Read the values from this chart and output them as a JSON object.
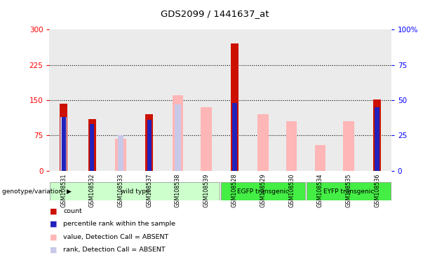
{
  "title": "GDS2099 / 1441637_at",
  "samples": [
    "GSM108531",
    "GSM108532",
    "GSM108533",
    "GSM108537",
    "GSM108538",
    "GSM108539",
    "GSM108528",
    "GSM108529",
    "GSM108530",
    "GSM108534",
    "GSM108535",
    "GSM108536"
  ],
  "count": [
    143,
    110,
    0,
    120,
    0,
    0,
    270,
    0,
    0,
    0,
    0,
    152
  ],
  "percentile_rank_pct": [
    38,
    33,
    0,
    36,
    0,
    0,
    48,
    0,
    0,
    0,
    0,
    45
  ],
  "value_absent": [
    0,
    0,
    68,
    0,
    160,
    135,
    0,
    120,
    105,
    55,
    105,
    0
  ],
  "rank_absent_pct": [
    38,
    0,
    25,
    0,
    47,
    0,
    0,
    0,
    0,
    0,
    0,
    0
  ],
  "left_ylim": [
    0,
    300
  ],
  "right_ylim": [
    0,
    100
  ],
  "left_yticks": [
    0,
    75,
    150,
    225,
    300
  ],
  "right_yticks": [
    0,
    25,
    50,
    75,
    100
  ],
  "right_yticklabels": [
    "0",
    "25",
    "50",
    "75",
    "100%"
  ],
  "group_info": [
    {
      "label": "wild type",
      "start": 0,
      "end": 5,
      "color": "#CCFFCC"
    },
    {
      "label": "EGFP transgenic",
      "start": 6,
      "end": 8,
      "color": "#44EE44"
    },
    {
      "label": "EYFP transgenic",
      "start": 9,
      "end": 11,
      "color": "#44EE44"
    }
  ],
  "bar_color_count": "#CC1100",
  "bar_color_rank": "#2222BB",
  "bar_color_value_absent": "#FFB6B6",
  "bar_color_rank_absent": "#C8C8E8",
  "legend_items": [
    {
      "color": "#CC1100",
      "label": "count"
    },
    {
      "color": "#2222BB",
      "label": "percentile rank within the sample"
    },
    {
      "color": "#FFB6B6",
      "label": "value, Detection Call = ABSENT"
    },
    {
      "color": "#C8C8E8",
      "label": "rank, Detection Call = ABSENT"
    }
  ]
}
